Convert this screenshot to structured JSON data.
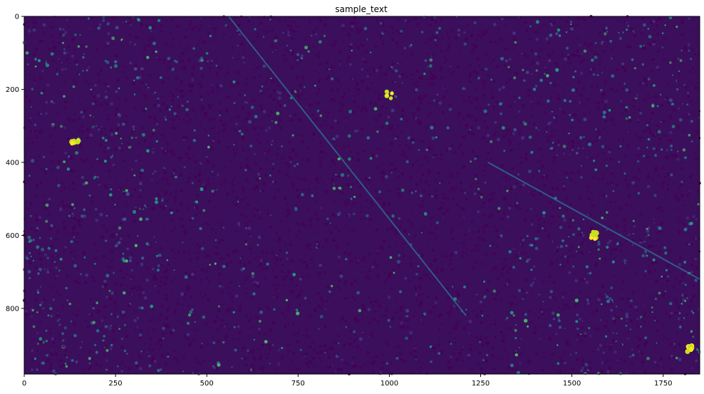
{
  "chart_data": {
    "type": "heatmap",
    "title": "sample_text",
    "colormap": "viridis",
    "xlabel": "",
    "ylabel": "",
    "xlim": [
      0,
      1850
    ],
    "ylim": [
      980,
      0
    ],
    "x_ticks": [
      0,
      250,
      500,
      750,
      1000,
      1250,
      1500,
      1750
    ],
    "y_ticks": [
      0,
      200,
      400,
      600,
      800
    ],
    "grid": false,
    "features": [
      {
        "kind": "diagonal-line",
        "from": [
          560,
          0
        ],
        "to": [
          1210,
          820
        ]
      },
      {
        "kind": "diagonal-line",
        "from": [
          1270,
          400
        ],
        "to": [
          1850,
          720
        ]
      },
      {
        "kind": "bright-cluster",
        "at": [
          140,
          340
        ]
      },
      {
        "kind": "bright-cluster",
        "at": [
          1000,
          215
        ]
      },
      {
        "kind": "bright-cluster",
        "at": [
          1560,
          600
        ]
      },
      {
        "kind": "bright-cluster",
        "at": [
          1820,
          910
        ]
      }
    ]
  }
}
